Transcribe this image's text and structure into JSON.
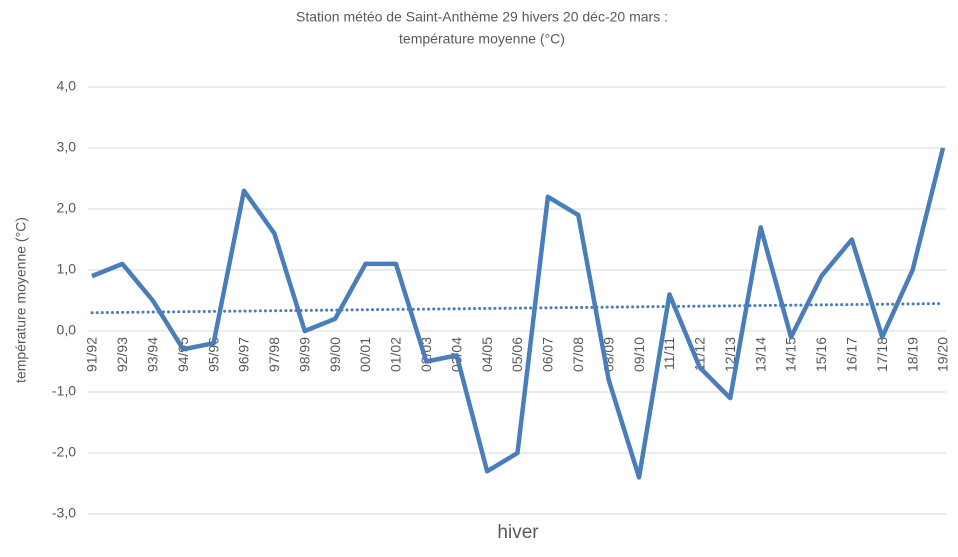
{
  "chart_data": {
    "type": "line",
    "title": [
      "Station météo de Saint-Anthème 29 hivers 20 déc-20 mars :",
      "température moyenne (°C)"
    ],
    "x_label": "hiver",
    "y_label": "température moyenne (°C)",
    "categories": [
      "91/92",
      "92/93",
      "93/94",
      "94/95",
      "95/96",
      "96/97",
      "97/98",
      "98/99",
      "99/00",
      "00/01",
      "01/02",
      "02/03",
      "03/04",
      "04/05",
      "05/06",
      "06/07",
      "07/08",
      "08/09",
      "09/10",
      "11/11",
      "11/12",
      "12/13",
      "13/14",
      "14/15",
      "15/16",
      "16/17",
      "17/18",
      "18/19",
      "19/20"
    ],
    "series": [
      {
        "color": "#4a7ebb",
        "values": [
          0.9,
          1.1,
          0.5,
          -0.3,
          -0.2,
          2.3,
          1.6,
          0.0,
          0.2,
          1.1,
          1.1,
          -0.5,
          -0.4,
          -2.3,
          -2.0,
          2.2,
          1.9,
          -0.8,
          -2.4,
          0.6,
          -0.6,
          -1.1,
          1.7,
          -0.1,
          0.9,
          1.5,
          -0.1,
          1.0,
          3.0
        ]
      }
    ],
    "trendline": {
      "color": "#4a7ebb",
      "values": [
        0.3,
        0.45
      ]
    },
    "ylim": [
      -3,
      4
    ],
    "yticks": [
      {
        "value": -3,
        "label": "-3,0"
      },
      {
        "value": -2,
        "label": "-2,0"
      },
      {
        "value": -1,
        "label": "-1,0"
      },
      {
        "value": 0,
        "label": "0,0"
      },
      {
        "value": 1,
        "label": "1,0"
      },
      {
        "value": 2,
        "label": "2,0"
      },
      {
        "value": 3,
        "label": "3,0"
      },
      {
        "value": 4,
        "label": "4,0"
      }
    ],
    "grid": true
  }
}
